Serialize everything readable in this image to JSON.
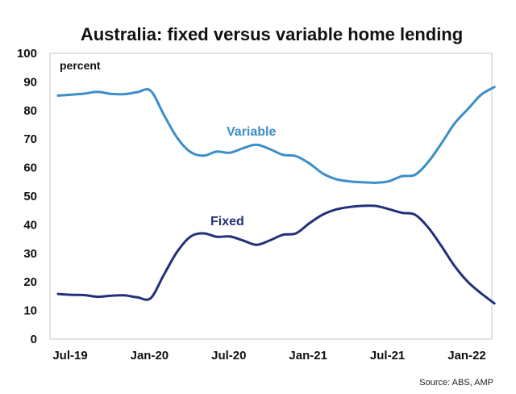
{
  "chart_data": {
    "type": "line",
    "title": "Australia: fixed versus variable home lending",
    "unit_label": "percent",
    "source": "Source: ABS, AMP",
    "ylim": [
      0,
      100
    ],
    "y_ticks": [
      "0",
      "10",
      "20",
      "30",
      "40",
      "50",
      "60",
      "70",
      "80",
      "90",
      "100"
    ],
    "x_tick_labels": [
      "Jul-19",
      "Jan-20",
      "Jul-20",
      "Jan-21",
      "Jul-21",
      "Jan-22"
    ],
    "x": [
      "2019-07",
      "2019-08",
      "2019-09",
      "2019-10",
      "2019-11",
      "2019-12",
      "2020-01",
      "2020-02",
      "2020-03",
      "2020-04",
      "2020-05",
      "2020-06",
      "2020-07",
      "2020-08",
      "2020-09",
      "2020-10",
      "2020-11",
      "2020-12",
      "2021-01",
      "2021-02",
      "2021-03",
      "2021-04",
      "2021-05",
      "2021-06",
      "2021-07",
      "2021-08",
      "2021-09",
      "2021-10",
      "2021-11",
      "2021-12",
      "2022-01",
      "2022-02",
      "2022-03",
      "2022-04"
    ],
    "series": [
      {
        "name": "Variable",
        "color": "#3a8fc7",
        "values": [
          85.2,
          85.5,
          85.9,
          86.5,
          85.8,
          85.7,
          86.4,
          86.9,
          78.5,
          70.5,
          65.5,
          64.2,
          65.6,
          65.2,
          66.8,
          68.0,
          66.5,
          64.5,
          64.0,
          61.5,
          58.0,
          56.0,
          55.2,
          54.9,
          54.7,
          55.2,
          57.0,
          57.5,
          62.0,
          68.5,
          75.5,
          80.5,
          85.5,
          88.2
        ]
      },
      {
        "name": "Fixed",
        "color": "#23307a",
        "values": [
          15.8,
          15.5,
          15.4,
          14.8,
          15.2,
          15.3,
          14.6,
          14.3,
          22.5,
          30.5,
          35.8,
          37.0,
          35.8,
          35.9,
          34.5,
          33.0,
          34.5,
          36.5,
          37.0,
          40.5,
          43.5,
          45.3,
          46.2,
          46.6,
          46.6,
          45.5,
          44.2,
          43.5,
          39.0,
          32.5,
          25.5,
          20.0,
          16.0,
          12.5
        ]
      }
    ]
  }
}
